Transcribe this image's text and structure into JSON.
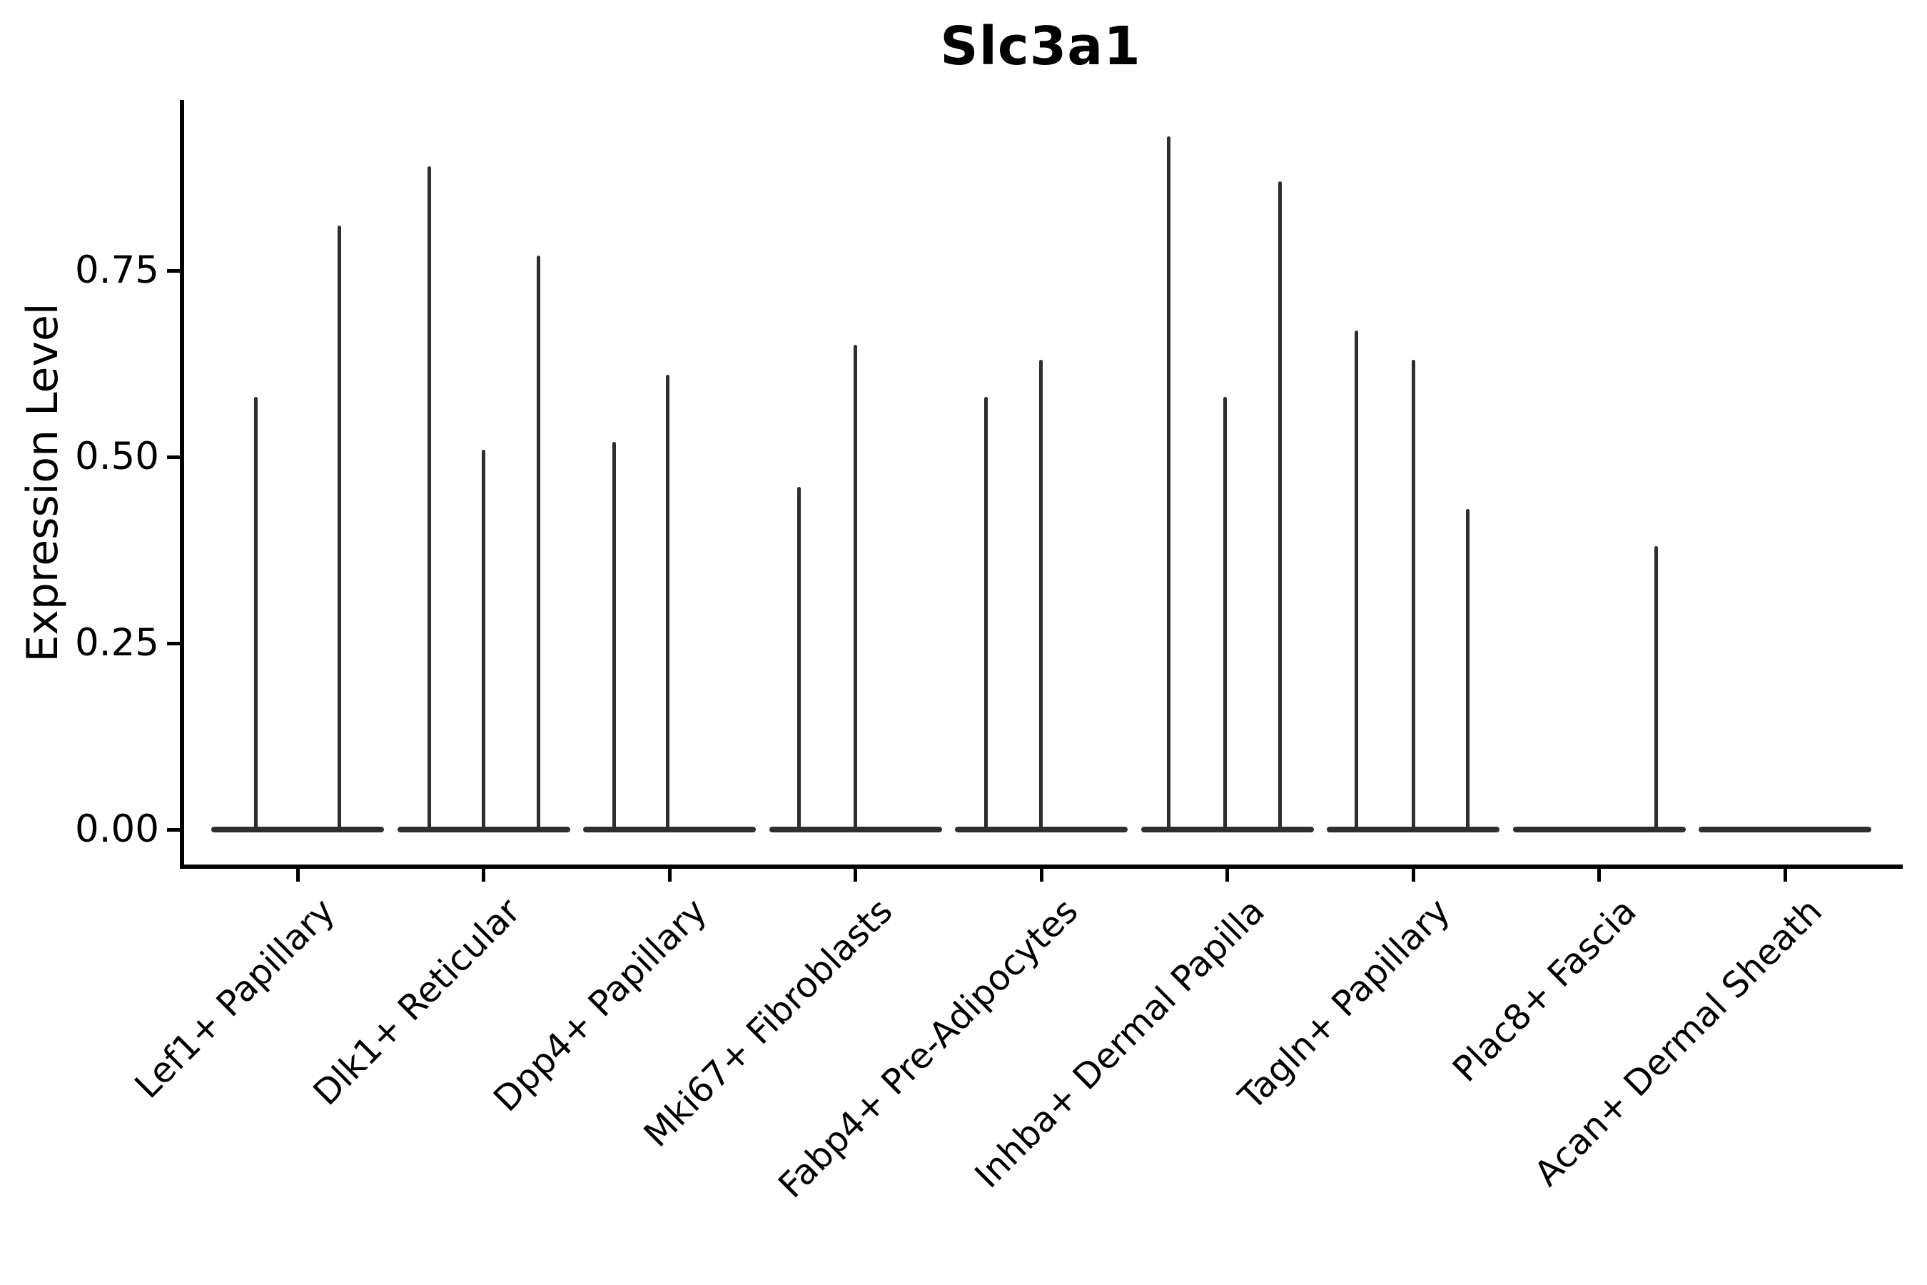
{
  "chart_data": {
    "type": "violin",
    "title": "Slc3a1",
    "xlabel": "",
    "ylabel": "Expression Level",
    "ylim": [
      0,
      0.98
    ],
    "yticks": [
      "0.00",
      "0.25",
      "0.50",
      "0.75"
    ],
    "ytick_values": [
      0,
      0.25,
      0.5,
      0.75
    ],
    "grid": false,
    "legend": "none",
    "axis_color": "#000000",
    "violin_color": "#2e2e2e",
    "categories": [
      "Lef1+ Papillary",
      "Dlk1+ Reticular",
      "Dpp4+ Papillary",
      "Mki67+ Fibroblasts",
      "Fabp4+ Pre-Adipocytes",
      "Inhba+ Dermal Papilla",
      "Tagln+ Papillary",
      "Plac8+ Fascia",
      "Acan+ Dermal Sheath"
    ],
    "groups": [
      {
        "category": "Lef1+ Papillary",
        "violins": [
          {
            "offset": -59,
            "max": 0.58
          },
          {
            "offset": 58,
            "max": 0.81
          }
        ]
      },
      {
        "category": "Dlk1+ Reticular",
        "violins": [
          {
            "offset": -76,
            "max": 0.89
          },
          {
            "offset": 0,
            "max": 0.51
          },
          {
            "offset": 77,
            "max": 0.77
          }
        ]
      },
      {
        "category": "Dpp4+ Papillary",
        "violins": [
          {
            "offset": -78,
            "max": 0.52
          },
          {
            "offset": -3,
            "max": 0.61
          }
        ]
      },
      {
        "category": "Mki67+ Fibroblasts",
        "violins": [
          {
            "offset": -79,
            "max": 0.46
          },
          {
            "offset": 0,
            "max": 0.65
          }
        ]
      },
      {
        "category": "Fabp4+ Pre-Adipocytes",
        "violins": [
          {
            "offset": -78,
            "max": 0.58
          },
          {
            "offset": -1,
            "max": 0.63
          }
        ]
      },
      {
        "category": "Inhba+ Dermal Papilla",
        "violins": [
          {
            "offset": -82,
            "max": 0.93
          },
          {
            "offset": -3,
            "max": 0.58
          },
          {
            "offset": 74,
            "max": 0.87
          }
        ]
      },
      {
        "category": "Tagln+ Papillary",
        "violins": [
          {
            "offset": -80,
            "max": 0.67
          },
          {
            "offset": 0,
            "max": 0.63
          },
          {
            "offset": 76,
            "max": 0.43
          }
        ]
      },
      {
        "category": "Plac8+ Fascia",
        "violins": [
          {
            "offset": 80,
            "max": 0.38
          }
        ]
      },
      {
        "category": "Acan+ Dermal Sheath",
        "violins": []
      }
    ]
  }
}
